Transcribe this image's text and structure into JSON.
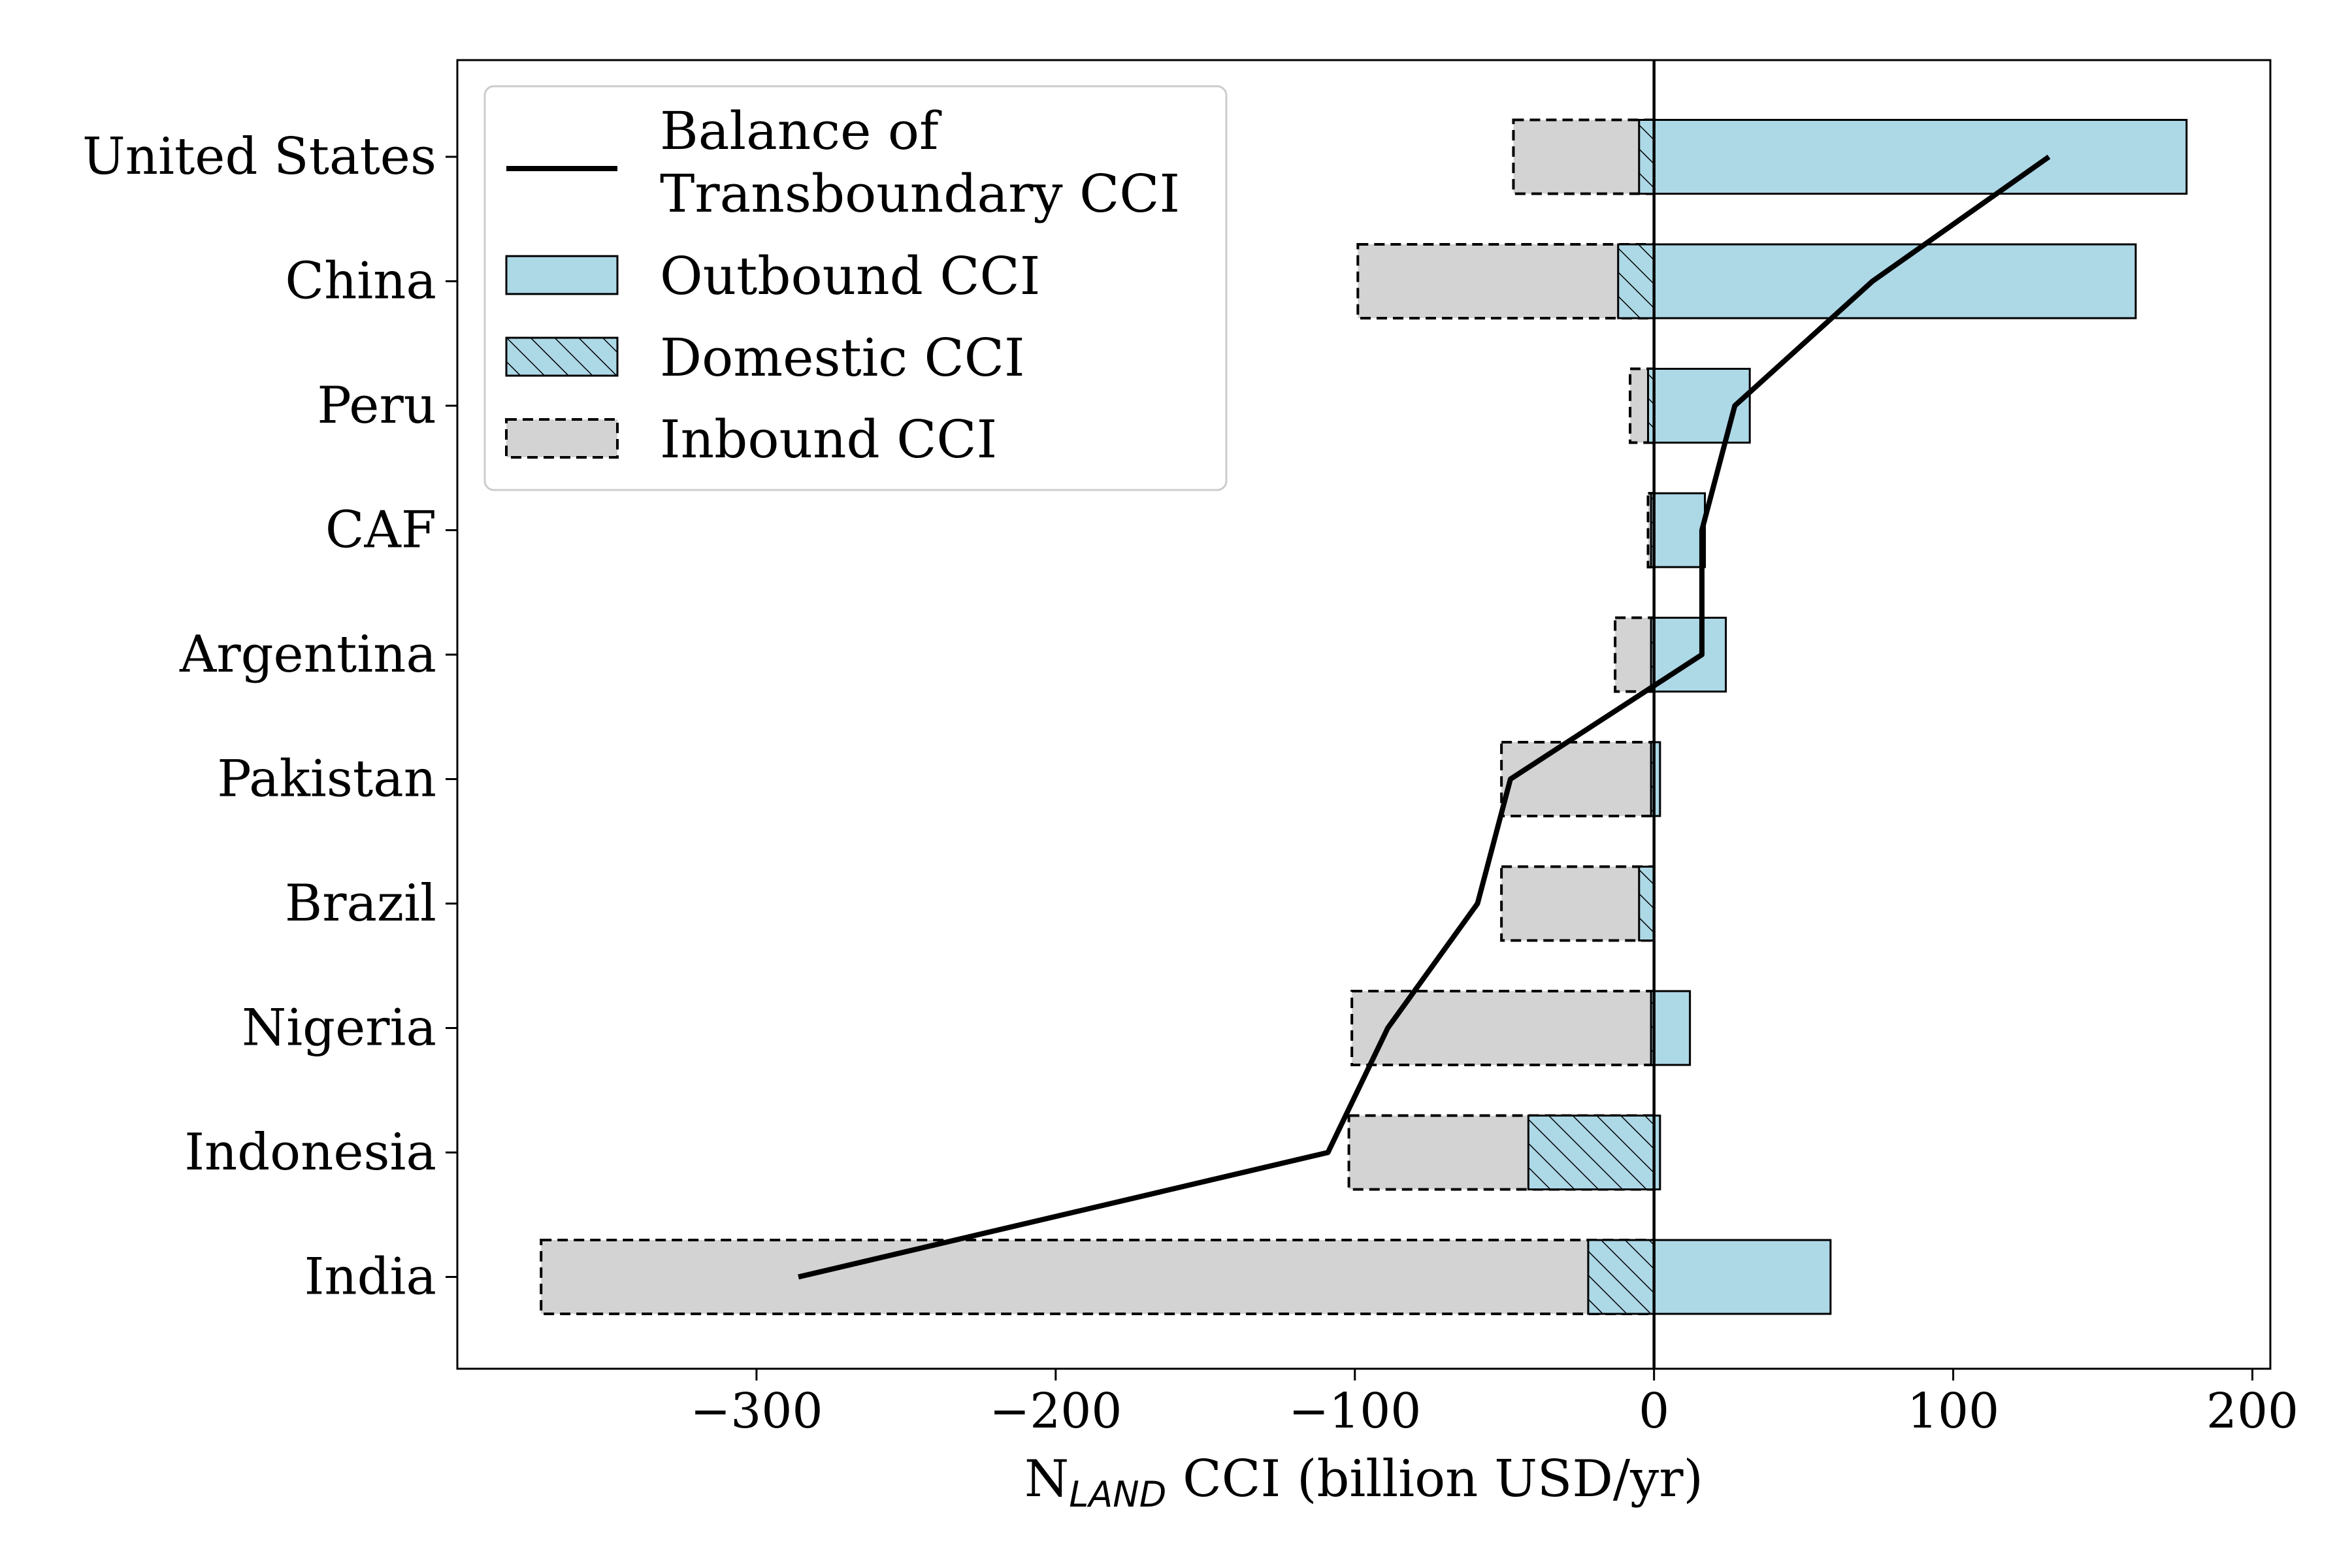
{
  "chart_data": {
    "type": "bar",
    "orientation": "horizontal",
    "categories": [
      "United States",
      "China",
      "Peru",
      "CAF",
      "Argentina",
      "Pakistan",
      "Brazil",
      "Nigeria",
      "Indonesia",
      "India"
    ],
    "series": [
      {
        "name": "Outbound CCI",
        "style": "solid",
        "color": "#add8e6",
        "values": [
          178,
          161,
          32,
          17,
          24,
          2,
          0,
          12,
          2,
          59
        ]
      },
      {
        "name": "Domestic CCI",
        "style": "hatched",
        "color": "#add8e6",
        "values": [
          -5,
          -12,
          -2,
          -1,
          -1,
          -1,
          -5,
          -1,
          -42,
          -22
        ]
      },
      {
        "name": "Inbound CCI",
        "style": "dashed",
        "color": "#d3d3d3",
        "values": [
          -47,
          -99,
          -8,
          -2,
          -13,
          -51,
          -51,
          -101,
          -102,
          -372
        ]
      },
      {
        "name": "Balance of Transboundary CCI",
        "style": "line",
        "color": "#000000",
        "values": [
          132,
          73,
          27,
          16,
          16,
          -48,
          -59,
          -89,
          -109,
          -286
        ]
      }
    ],
    "legend_label_lines": {
      "Balance of Transboundary CCI": [
        "Balance of",
        "Transboundary CCI"
      ]
    },
    "xlim": [
      -400,
      206
    ],
    "xticks": [
      -300,
      -200,
      -100,
      0,
      100,
      200
    ],
    "xtick_labels": [
      "−300",
      "−200",
      "−100",
      "0",
      "100",
      "200"
    ],
    "xlabel_main": "N",
    "xlabel_sub": "LAND",
    "xlabel_rest": " CCI (billion USD/yr)",
    "legend_position": "top-left",
    "grid": false
  }
}
